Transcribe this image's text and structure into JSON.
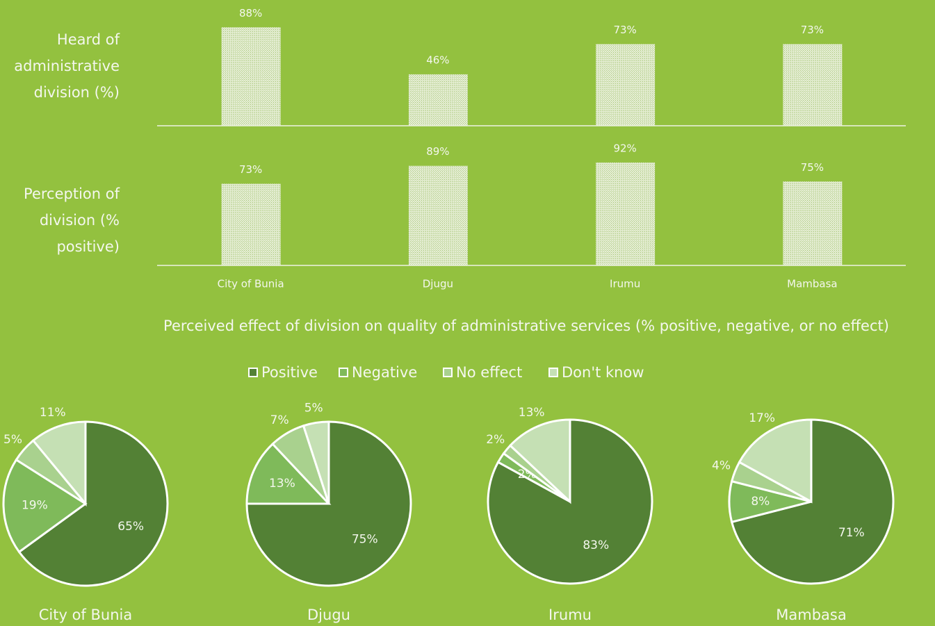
{
  "chart_data": [
    {
      "type": "bar",
      "title": "Heard of administrative division (%)",
      "values": [
        88,
        46,
        73,
        73
      ],
      "value_labels": [
        "88%",
        "46%",
        "73%",
        "73%"
      ],
      "ylim": [
        0,
        100
      ]
    },
    {
      "type": "bar",
      "title": "Perception of division (% positive)",
      "categories": [
        "City of Bunia",
        "Djugu",
        "Irumu",
        "Mambasa"
      ],
      "values": [
        73,
        89,
        92,
        75
      ],
      "value_labels": [
        "73%",
        "89%",
        "92%",
        "75%"
      ],
      "ylim": [
        0,
        100
      ]
    },
    {
      "type": "pie",
      "title": "Perceived effect of division on quality of administrative services (% positive, negative, or no effect)",
      "categories": [
        "Positive",
        "Negative",
        "No effect",
        "Don't know"
      ],
      "colors": [
        "#538135",
        "#7fba5a",
        "#a9d18e",
        "#c5e0b4"
      ],
      "series": [
        {
          "name": "City of Bunia",
          "values": [
            65,
            19,
            5,
            11
          ],
          "value_labels": [
            "65%",
            "19%",
            "5%",
            "11%"
          ]
        },
        {
          "name": "Djugu",
          "values": [
            75,
            13,
            7,
            5
          ],
          "value_labels": [
            "75%",
            "13%",
            "7%",
            "5%"
          ]
        },
        {
          "name": "Irumu",
          "values": [
            83,
            2,
            2,
            13
          ],
          "value_labels": [
            "83%",
            "2%",
            "2%",
            "13%"
          ]
        },
        {
          "name": "Mambasa",
          "values": [
            71,
            8,
            4,
            17
          ],
          "value_labels": [
            "71%",
            "8%",
            "4%",
            "17%"
          ]
        }
      ]
    }
  ]
}
